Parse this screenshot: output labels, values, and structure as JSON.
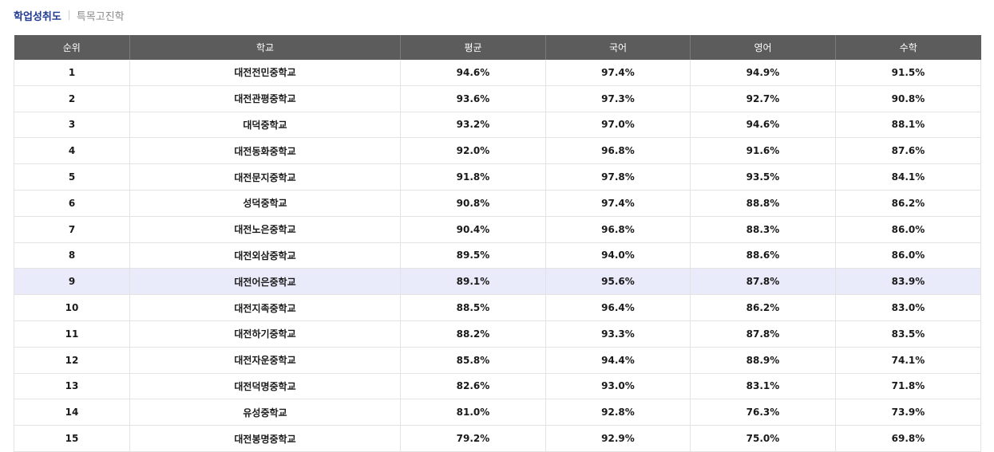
{
  "tabs": [
    {
      "label": "학업성취도",
      "active": true
    },
    {
      "label": "특목고진학",
      "active": false
    }
  ],
  "table": {
    "headers": [
      "순위",
      "학교",
      "평균",
      "국어",
      "영어",
      "수학"
    ],
    "highlight_rank": "9",
    "rows": [
      [
        "1",
        "대전전민중학교",
        "94.6%",
        "97.4%",
        "94.9%",
        "91.5%"
      ],
      [
        "2",
        "대전관평중학교",
        "93.6%",
        "97.3%",
        "92.7%",
        "90.8%"
      ],
      [
        "3",
        "대덕중학교",
        "93.2%",
        "97.0%",
        "94.6%",
        "88.1%"
      ],
      [
        "4",
        "대전동화중학교",
        "92.0%",
        "96.8%",
        "91.6%",
        "87.6%"
      ],
      [
        "5",
        "대전문지중학교",
        "91.8%",
        "97.8%",
        "93.5%",
        "84.1%"
      ],
      [
        "6",
        "성덕중학교",
        "90.8%",
        "97.4%",
        "88.8%",
        "86.2%"
      ],
      [
        "7",
        "대전노은중학교",
        "90.4%",
        "96.8%",
        "88.3%",
        "86.0%"
      ],
      [
        "8",
        "대전외삼중학교",
        "89.5%",
        "94.0%",
        "88.6%",
        "86.0%"
      ],
      [
        "9",
        "대전어은중학교",
        "89.1%",
        "95.6%",
        "87.8%",
        "83.9%"
      ],
      [
        "10",
        "대전지족중학교",
        "88.5%",
        "96.4%",
        "86.2%",
        "83.0%"
      ],
      [
        "11",
        "대전하기중학교",
        "88.2%",
        "93.3%",
        "87.8%",
        "83.5%"
      ],
      [
        "12",
        "대전자운중학교",
        "85.8%",
        "94.4%",
        "88.9%",
        "74.1%"
      ],
      [
        "13",
        "대전덕명중학교",
        "82.6%",
        "93.0%",
        "83.1%",
        "71.8%"
      ],
      [
        "14",
        "유성중학교",
        "81.0%",
        "92.8%",
        "76.3%",
        "73.9%"
      ],
      [
        "15",
        "대전봉명중학교",
        "79.2%",
        "92.9%",
        "75.0%",
        "69.8%"
      ]
    ]
  }
}
